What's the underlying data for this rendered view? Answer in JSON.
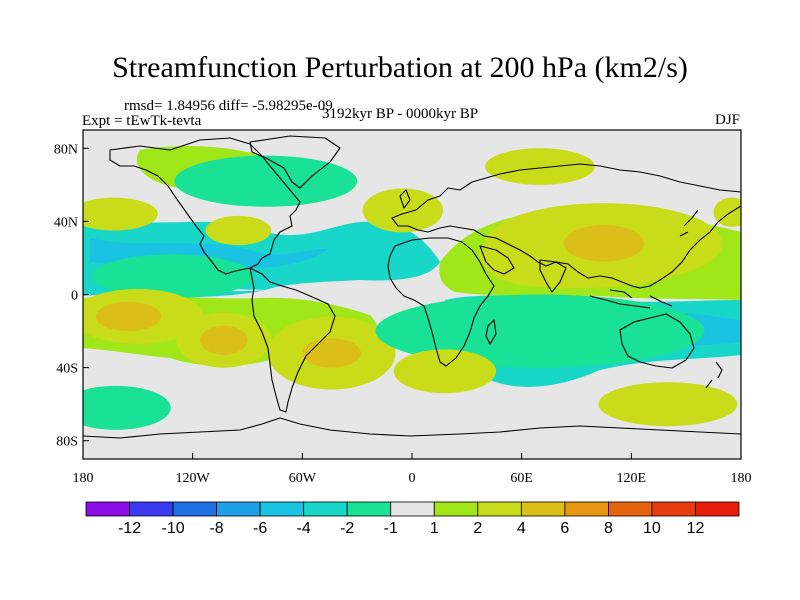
{
  "chart_data": {
    "type": "heatmap",
    "title": "Streamfunction Perturbation at 200 hPa (km2/s)",
    "stats": "rmsd= 1.84956 diff= -5.98295e-09",
    "experiment": "Expt = tEwTk-tevta",
    "period": "3192kyr BP - 0000kyr BP",
    "season": "DJF",
    "x_ticks": [
      "180",
      "120W",
      "60W",
      "0",
      "60E",
      "120E",
      "180"
    ],
    "x_tick_values": [
      -180,
      -120,
      -60,
      0,
      60,
      120,
      180
    ],
    "y_ticks": [
      "80N",
      "40N",
      "0",
      "40S",
      "80S"
    ],
    "y_tick_values": [
      80,
      40,
      0,
      -40,
      -80
    ],
    "xlim": [
      -180,
      180
    ],
    "ylim": [
      -90,
      90
    ],
    "colorbar": {
      "labels": [
        "-12",
        "-10",
        "-8",
        "-6",
        "-4",
        "-2",
        "-1",
        "1",
        "2",
        "4",
        "6",
        "8",
        "10",
        "12"
      ],
      "colors": [
        "#8c0ee6",
        "#3a3af0",
        "#1e6ee6",
        "#1ea0e6",
        "#19c3e1",
        "#19d7c8",
        "#19e196",
        "#e6e6e6",
        "#a0e619",
        "#c8dc19",
        "#dcbe19",
        "#e6960f",
        "#e6640f",
        "#e63c0f",
        "#e61e0a"
      ]
    },
    "anomalies": [
      {
        "lon": -163,
        "lat": 44,
        "rx": 24,
        "ry": 9,
        "value": 2
      },
      {
        "lon": -131,
        "lat": 10,
        "rx": 44,
        "ry": 12,
        "value": -2
      },
      {
        "lon": -150,
        "lat": -12,
        "rx": 36,
        "ry": 15,
        "value": 2
      },
      {
        "lon": -155,
        "lat": -12,
        "rx": 18,
        "ry": 8,
        "value": 5
      },
      {
        "lon": -103,
        "lat": -25,
        "rx": 26,
        "ry": 15,
        "value": 2
      },
      {
        "lon": -103,
        "lat": -25,
        "rx": 13,
        "ry": 8,
        "value": 5
      },
      {
        "lon": -44,
        "lat": -32,
        "rx": 35,
        "ry": 20,
        "value": 2
      },
      {
        "lon": -44,
        "lat": -32,
        "rx": 16,
        "ry": 8,
        "value": 5
      },
      {
        "lon": -80,
        "lat": 62,
        "rx": 50,
        "ry": 14,
        "value": -2
      },
      {
        "lon": -95,
        "lat": 35,
        "rx": 18,
        "ry": 8,
        "value": 2
      },
      {
        "lon": -5,
        "lat": 46,
        "rx": 22,
        "ry": 12,
        "value": 2
      },
      {
        "lon": 70,
        "lat": 70,
        "rx": 30,
        "ry": 10,
        "value": 2
      },
      {
        "lon": 105,
        "lat": 28,
        "rx": 65,
        "ry": 22,
        "value": 2
      },
      {
        "lon": 105,
        "lat": 28,
        "rx": 22,
        "ry": 10,
        "value": 4
      },
      {
        "lon": 70,
        "lat": -20,
        "rx": 90,
        "ry": 20,
        "value": -2
      },
      {
        "lon": 175,
        "lat": 45,
        "rx": 10,
        "ry": 8,
        "value": 2
      },
      {
        "lon": -162,
        "lat": -62,
        "rx": 30,
        "ry": 12,
        "value": -2
      },
      {
        "lon": 140,
        "lat": -60,
        "rx": 38,
        "ry": 12,
        "value": 2
      },
      {
        "lon": 18,
        "lat": -42,
        "rx": 28,
        "ry": 12,
        "value": 2
      }
    ]
  }
}
